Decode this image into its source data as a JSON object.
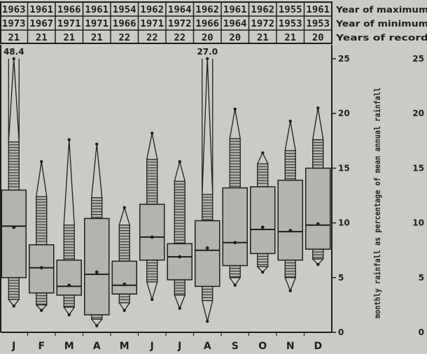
{
  "chart_data": {
    "type": "boxplot",
    "title": "",
    "ylabel": "monthly rainfall as percentage of mean annual rainfall",
    "ylim": [
      0,
      25
    ],
    "yticks": [
      "0",
      "5",
      "10",
      "15",
      "20",
      "25"
    ],
    "right_ticks": [
      "0",
      "5",
      "10",
      "15",
      "20",
      "25"
    ],
    "categories": [
      "J",
      "F",
      "M",
      "A",
      "M",
      "J",
      "J",
      "A",
      "S",
      "O",
      "N",
      "D"
    ],
    "header": {
      "row_labels": [
        "Year of maximum",
        "Year of minimum",
        "Years of record"
      ],
      "year_of_maximum": [
        "1963",
        "1961",
        "1966",
        "1961",
        "1954",
        "1962",
        "1964",
        "1962",
        "1961",
        "1962",
        "1955",
        "1961"
      ],
      "year_of_minimum": [
        "1973",
        "1967",
        "1971",
        "1971",
        "1966",
        "1971",
        "1972",
        "1966",
        "1964",
        "1972",
        "1953",
        "1953"
      ],
      "years_of_record": [
        "21",
        "21",
        "21",
        "21",
        "22",
        "22",
        "22",
        "20",
        "20",
        "21",
        "21",
        "20"
      ]
    },
    "off_scale_labels": [
      {
        "category_index": 0,
        "value": "48.4"
      },
      {
        "category_index": 7,
        "value": "27.0"
      }
    ],
    "months": [
      {
        "max": 48.4,
        "p90": 17.4,
        "p75": 13.0,
        "mean": 9.6,
        "median": 9.7,
        "p25": 5.0,
        "p10": 3.0,
        "min": 2.4
      },
      {
        "max": 15.6,
        "p90": 12.4,
        "p75": 8.0,
        "mean": 5.9,
        "median": 5.9,
        "p25": 3.6,
        "p10": 2.5,
        "min": 2.0
      },
      {
        "max": 17.6,
        "p90": 9.8,
        "p75": 6.6,
        "mean": 4.3,
        "median": 4.2,
        "p25": 3.4,
        "p10": 2.3,
        "min": 1.6
      },
      {
        "max": 17.2,
        "p90": 12.3,
        "p75": 10.4,
        "mean": 5.5,
        "median": 5.3,
        "p25": 1.6,
        "p10": 1.2,
        "min": 0.6
      },
      {
        "max": 11.4,
        "p90": 9.8,
        "p75": 6.5,
        "mean": 4.4,
        "median": 4.3,
        "p25": 3.5,
        "p10": 2.7,
        "min": 2.0
      },
      {
        "max": 18.2,
        "p90": 15.8,
        "p75": 11.7,
        "mean": 8.7,
        "median": 8.7,
        "p25": 6.6,
        "p10": 4.6,
        "min": 3.0
      },
      {
        "max": 15.6,
        "p90": 13.8,
        "p75": 8.1,
        "mean": 6.9,
        "median": 6.9,
        "p25": 4.8,
        "p10": 3.4,
        "min": 2.2
      },
      {
        "max": 27.0,
        "p90": 12.6,
        "p75": 10.2,
        "mean": 7.7,
        "median": 7.5,
        "p25": 4.2,
        "p10": 2.9,
        "min": 1.0
      },
      {
        "max": 20.4,
        "p90": 17.7,
        "p75": 13.2,
        "mean": 8.2,
        "median": 8.2,
        "p25": 6.1,
        "p10": 5.0,
        "min": 4.3
      },
      {
        "max": 16.4,
        "p90": 15.4,
        "p75": 13.3,
        "mean": 9.6,
        "median": 9.4,
        "p25": 7.2,
        "p10": 6.0,
        "min": 5.5
      },
      {
        "max": 19.3,
        "p90": 16.6,
        "p75": 13.9,
        "mean": 9.3,
        "median": 9.2,
        "p25": 6.6,
        "p10": 5.0,
        "min": 3.8
      },
      {
        "max": 20.5,
        "p90": 17.6,
        "p75": 15.0,
        "mean": 9.9,
        "median": 9.8,
        "p25": 7.6,
        "p10": 6.7,
        "min": 6.2
      }
    ],
    "grid": false
  },
  "colors": {
    "background": "#cbcbc5",
    "box_fill": "#b4b4ae",
    "ink": "#1e1e1e"
  }
}
